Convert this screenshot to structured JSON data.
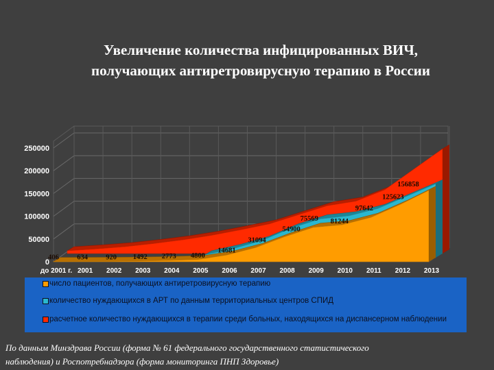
{
  "title_line1": "Увеличение количества инфицированных ВИЧ,",
  "title_line2": "получающих антиретровирусную терапию в России",
  "source_line1": "По данным Минздрава России (форма № 61 федерального государственного статистического",
  "source_line2": "наблюдения) и Роспотребнадзора (форма мониторинга ПНП Здоровье)",
  "colors": {
    "background": "#3f3f3f",
    "orange": "#ff9c00",
    "teal": "#2ab7cf",
    "red": "#ff2a00",
    "legend_bg": "#1a63c5"
  },
  "chart_data": {
    "type": "area",
    "style": "3d-stacked-area",
    "categories": [
      "до 2001 г.",
      "2001",
      "2002",
      "2003",
      "2004",
      "2005",
      "2006",
      "2007",
      "2008",
      "2009",
      "2010",
      "2011",
      "2012",
      "2013"
    ],
    "ylim": [
      0,
      250000
    ],
    "yticks": [
      "0",
      "50000",
      "100000",
      "150000",
      "200000",
      "250000"
    ],
    "grid": true,
    "legend_placement": "bottom",
    "series": [
      {
        "name": "число пациентов, получающих антиретровирусную терапию",
        "color": "#ff9c00",
        "values": [
          406,
          634,
          920,
          1492,
          2773,
          4800,
          14681,
          31094,
          54900,
          75569,
          81244,
          97642,
          125623,
          156858
        ],
        "labels": [
          "406",
          "634",
          "920",
          "1492",
          "2773",
          "4800",
          "14681",
          "31094",
          "54900",
          "75569",
          "81244",
          "97642",
          "125623",
          "156858"
        ]
      },
      {
        "name": "количество нуждающихся в АРТ по данным территориальных центров СПИД",
        "color": "#2ab7cf",
        "values": [
          null,
          null,
          null,
          null,
          null,
          6000,
          20000,
          38000,
          65000,
          85000,
          92000,
          108000,
          135000,
          162000
        ]
      },
      {
        "name": "расчетное количество нуждающихся в терапии среди больных, находящихся на диспансерном наблюдении",
        "color": "#ff2a00",
        "values": [
          6000,
          10000,
          15000,
          22000,
          30000,
          40000,
          52000,
          65000,
          85000,
          105000,
          115000,
          140000,
          185000,
          230000
        ]
      }
    ]
  }
}
